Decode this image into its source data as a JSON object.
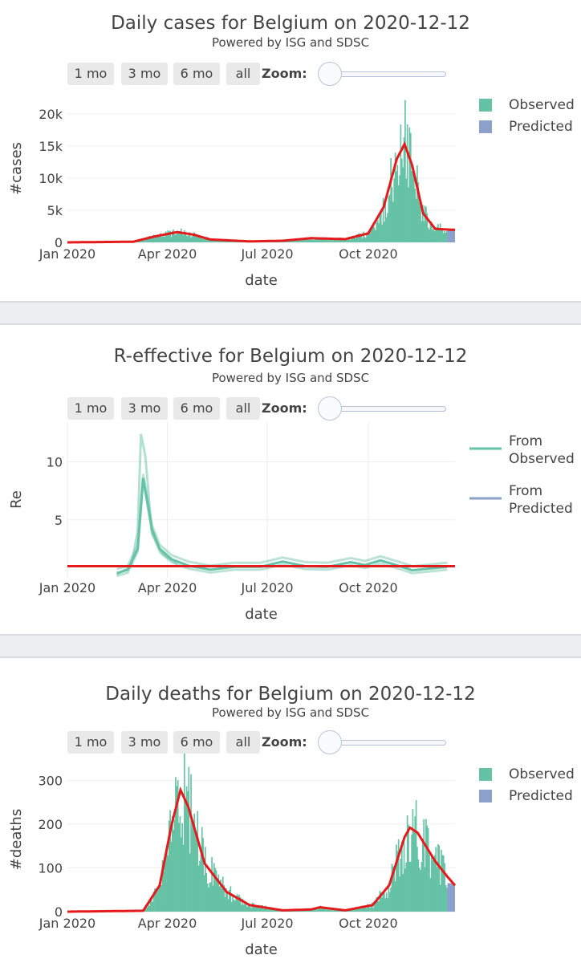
{
  "buttons": {
    "b1": "1 mo",
    "b3": "3 mo",
    "b6": "6 mo",
    "ball": "all",
    "zoom": "Zoom:"
  },
  "colors": {
    "observed": "#66c2a5",
    "predicted": "#8da0cb",
    "fit": "#e41a1c",
    "grid": "#eeeeee"
  },
  "charts": [
    {
      "title": "Daily cases for Belgium on 2020-12-12",
      "subtitle": "Powered by ISG and SDSC",
      "chart_data": {
        "type": "bar",
        "title": "Daily cases for Belgium on 2020-12-12",
        "xlabel": "date",
        "ylabel": "#cases",
        "x_ticks": [
          "Jan 2020",
          "Apr 2020",
          "Jul 2020",
          "Oct 2020"
        ],
        "y_ticks": [
          "0",
          "5k",
          "10k",
          "15k",
          "20k"
        ],
        "ylim": [
          0,
          23000
        ],
        "legend": [
          "Observed",
          "Predicted"
        ],
        "legend_position": "top-right",
        "observed_months": [
          "Jan 2020",
          "Feb 2020",
          "Mar 2020",
          "Apr 2020",
          "May 2020",
          "Jun 2020",
          "Jul 2020",
          "Aug 2020",
          "Sep 2020",
          "Oct 2020",
          "Nov 2020",
          "Dec 2020"
        ],
        "fit_key_points": [
          [
            "2020-01-01",
            0
          ],
          [
            "2020-03-01",
            100
          ],
          [
            "2020-03-20",
            900
          ],
          [
            "2020-04-10",
            1600
          ],
          [
            "2020-04-25",
            1200
          ],
          [
            "2020-05-10",
            450
          ],
          [
            "2020-06-15",
            150
          ],
          [
            "2020-07-15",
            250
          ],
          [
            "2020-08-10",
            650
          ],
          [
            "2020-09-10",
            500
          ],
          [
            "2020-10-01",
            1400
          ],
          [
            "2020-10-15",
            5500
          ],
          [
            "2020-10-27",
            13000
          ],
          [
            "2020-11-03",
            15300
          ],
          [
            "2020-11-10",
            12000
          ],
          [
            "2020-11-20",
            4500
          ],
          [
            "2020-12-01",
            2100
          ],
          [
            "2020-12-12",
            2000
          ],
          [
            "2020-12-19",
            1950
          ]
        ],
        "predicted_range": [
          "2020-12-12",
          "2020-12-19"
        ],
        "predicted_level": 1950
      }
    },
    {
      "title": "R-effective for Belgium on 2020-12-12",
      "subtitle": "Powered by ISG and SDSC",
      "chart_data": {
        "type": "line",
        "title": "R-effective for Belgium on 2020-12-12",
        "xlabel": "date",
        "ylabel": "Re",
        "x_ticks": [
          "Jan 2020",
          "Apr 2020",
          "Jul 2020",
          "Oct 2020"
        ],
        "y_ticks": [
          "5",
          "10"
        ],
        "ylim": [
          0,
          13.5
        ],
        "reference_line": 1,
        "legend": [
          "From\nObserved",
          "From\nPredicted"
        ],
        "legend_position": "top-right",
        "series": [
          {
            "name": "From Observed",
            "points": [
              [
                "2020-02-15",
                0.4
              ],
              [
                "2020-02-25",
                0.7
              ],
              [
                "2020-03-05",
                2.5
              ],
              [
                "2020-03-10",
                8.6
              ],
              [
                "2020-03-13",
                7.0
              ],
              [
                "2020-03-18",
                4.2
              ],
              [
                "2020-03-25",
                2.5
              ],
              [
                "2020-04-05",
                1.6
              ],
              [
                "2020-04-20",
                1.05
              ],
              [
                "2020-05-10",
                0.7
              ],
              [
                "2020-06-01",
                0.95
              ],
              [
                "2020-06-25",
                0.95
              ],
              [
                "2020-07-15",
                1.4
              ],
              [
                "2020-08-05",
                1.0
              ],
              [
                "2020-08-25",
                0.95
              ],
              [
                "2020-09-15",
                1.35
              ],
              [
                "2020-09-28",
                1.1
              ],
              [
                "2020-10-12",
                1.5
              ],
              [
                "2020-10-30",
                1.0
              ],
              [
                "2020-11-10",
                0.65
              ],
              [
                "2020-12-12",
                0.95
              ]
            ]
          },
          {
            "name": "From Observed band",
            "points": [
              [
                "2020-02-15",
                0.3
              ],
              [
                "2020-02-28",
                1.0
              ],
              [
                "2020-03-05",
                4.0
              ],
              [
                "2020-03-08",
                12.4
              ],
              [
                "2020-03-12",
                10.5
              ],
              [
                "2020-03-18",
                3.8
              ],
              [
                "2020-03-28",
                2.0
              ],
              [
                "2020-04-10",
                1.2
              ]
            ]
          }
        ]
      }
    },
    {
      "title": "Daily deaths for Belgium on 2020-12-12",
      "subtitle": "Powered by ISG and SDSC",
      "chart_data": {
        "type": "bar",
        "title": "Daily deaths for Belgium on 2020-12-12",
        "xlabel": "date",
        "ylabel": "#deaths",
        "x_ticks": [
          "Jan 2020",
          "Apr 2020",
          "Jul 2020",
          "Oct 2020"
        ],
        "y_ticks": [
          "0",
          "100",
          "200",
          "300"
        ],
        "ylim": [
          0,
          330
        ],
        "legend": [
          "Observed",
          "Predicted"
        ],
        "legend_position": "top-right",
        "fit_key_points": [
          [
            "2020-01-01",
            0
          ],
          [
            "2020-03-10",
            2
          ],
          [
            "2020-03-25",
            60
          ],
          [
            "2020-04-05",
            200
          ],
          [
            "2020-04-13",
            278
          ],
          [
            "2020-04-20",
            240
          ],
          [
            "2020-05-05",
            110
          ],
          [
            "2020-05-25",
            45
          ],
          [
            "2020-06-15",
            15
          ],
          [
            "2020-07-15",
            3
          ],
          [
            "2020-08-10",
            5
          ],
          [
            "2020-08-18",
            10
          ],
          [
            "2020-09-10",
            3
          ],
          [
            "2020-10-05",
            15
          ],
          [
            "2020-10-20",
            60
          ],
          [
            "2020-11-03",
            170
          ],
          [
            "2020-11-08",
            192
          ],
          [
            "2020-11-15",
            180
          ],
          [
            "2020-12-01",
            115
          ],
          [
            "2020-12-12",
            80
          ],
          [
            "2020-12-19",
            60
          ]
        ],
        "predicted_range": [
          "2020-12-12",
          "2020-12-19"
        ],
        "predicted_level": 65
      }
    }
  ]
}
